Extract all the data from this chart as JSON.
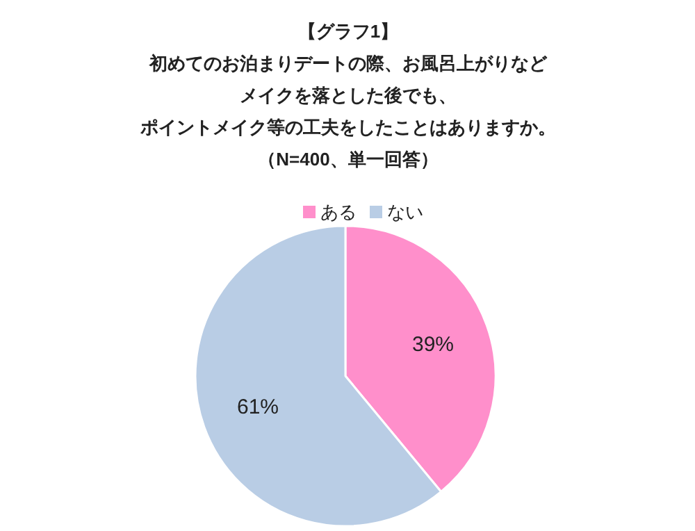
{
  "chart_data": {
    "type": "pie",
    "title": "【グラフ1】",
    "subtitle": "初めてのお泊まりデートの際、お風呂上がりなどメイクを落とした後でも、ポイントメイク等の工夫をしたことはありますか。",
    "annotations": [
      "（N=400、単一回答）"
    ],
    "categories": [
      "ある",
      "ない"
    ],
    "values": [
      39,
      61
    ],
    "colors": [
      "#ff8fcb",
      "#b9cde5"
    ],
    "value_labels": [
      "39%",
      "61%"
    ],
    "legend": "top"
  }
}
